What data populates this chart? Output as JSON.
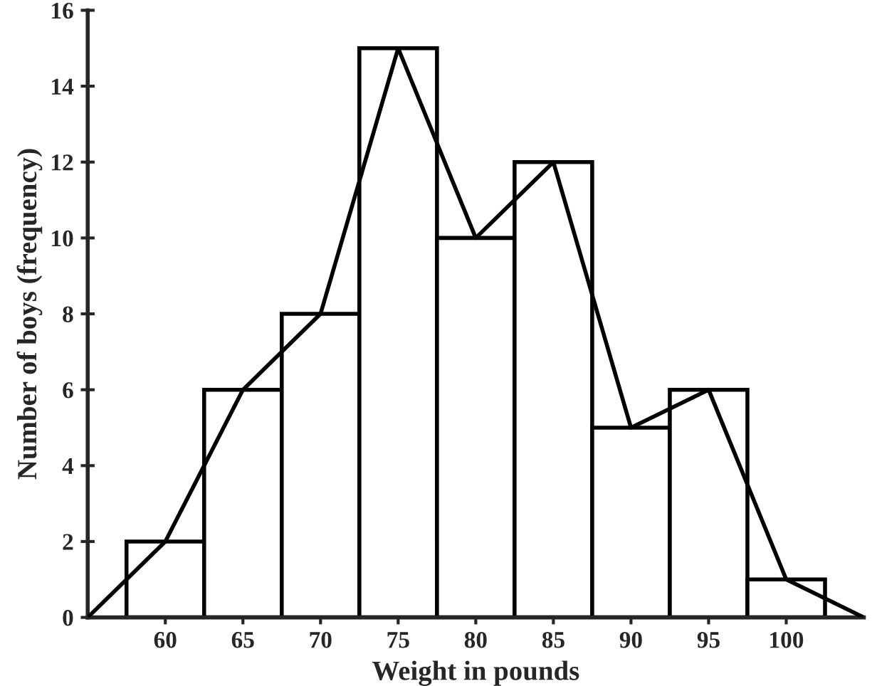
{
  "chart_data": {
    "type": "histogram",
    "xlabel": "Weight in pounds",
    "ylabel": "Number of boys (frequency)",
    "bins": [
      57.5,
      62.5,
      67.5,
      72.5,
      77.5,
      82.5,
      87.5,
      92.5,
      97.5,
      102.5
    ],
    "values": [
      2,
      6,
      8,
      15,
      10,
      12,
      5,
      6,
      1
    ],
    "color": "#ffffff",
    "series": [
      {
        "type": "line",
        "color": "#000000",
        "x": [
          55,
          60,
          65,
          70,
          75,
          80,
          85,
          90,
          95,
          100,
          105
        ],
        "values": [
          0,
          2,
          6,
          8,
          15,
          10,
          12,
          5,
          6,
          1,
          0
        ]
      }
    ],
    "xlim": [
      55,
      105
    ],
    "xticks": [
      60,
      65,
      70,
      75,
      80,
      85,
      90,
      95,
      100
    ],
    "ylim": [
      0,
      16
    ],
    "yticks": [
      0,
      2,
      4,
      6,
      8,
      10,
      12,
      14,
      16
    ],
    "grid": false,
    "legend": false
  }
}
